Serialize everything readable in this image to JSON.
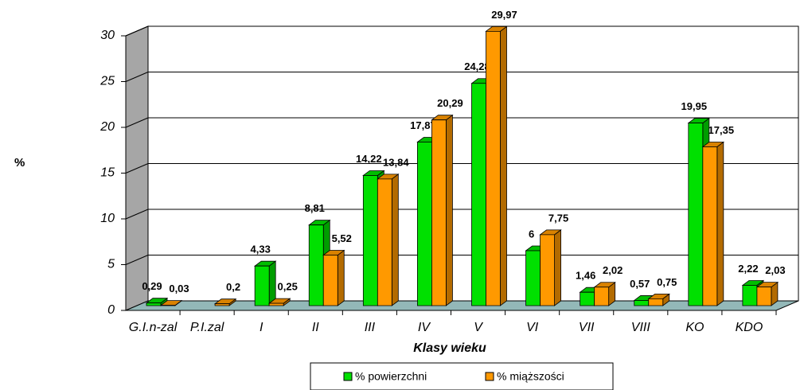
{
  "chart_data": {
    "type": "bar3d",
    "categories": [
      "G.I.n-zal",
      "P.I.zal",
      "I",
      "II",
      "III",
      "IV",
      "V",
      "VI",
      "VII",
      "VIII",
      "KO",
      "KDO"
    ],
    "series": [
      {
        "name": "% powierzchni",
        "color": "#00e000",
        "values": [
          0.29,
          null,
          4.33,
          8.81,
          14.22,
          17.87,
          24.28,
          6,
          1.46,
          0.57,
          19.95,
          2.22
        ],
        "value_labels": [
          "0,29",
          null,
          "4,33",
          "8,81",
          "14,22",
          "17,87",
          "24,28",
          "6",
          "1,46",
          "0,57",
          "19,95",
          "2,22"
        ]
      },
      {
        "name": "% miąższości",
        "color": "#ff9900",
        "values": [
          0.03,
          0.2,
          0.25,
          5.52,
          13.84,
          20.29,
          29.97,
          7.75,
          2.02,
          0.75,
          17.35,
          2.03
        ],
        "value_labels": [
          "0,03",
          "0,2",
          "0,25",
          "5,52",
          "13,84",
          "20,29",
          "29,97",
          "7,75",
          "2,02",
          "0,75",
          "17,35",
          "2,03"
        ]
      }
    ],
    "ylim": [
      0,
      30
    ],
    "yticks": [
      0,
      5,
      10,
      15,
      20,
      25,
      30
    ],
    "grid": true,
    "y_label": "%",
    "x_label": "Klasy wieku",
    "legend": "bottom"
  }
}
